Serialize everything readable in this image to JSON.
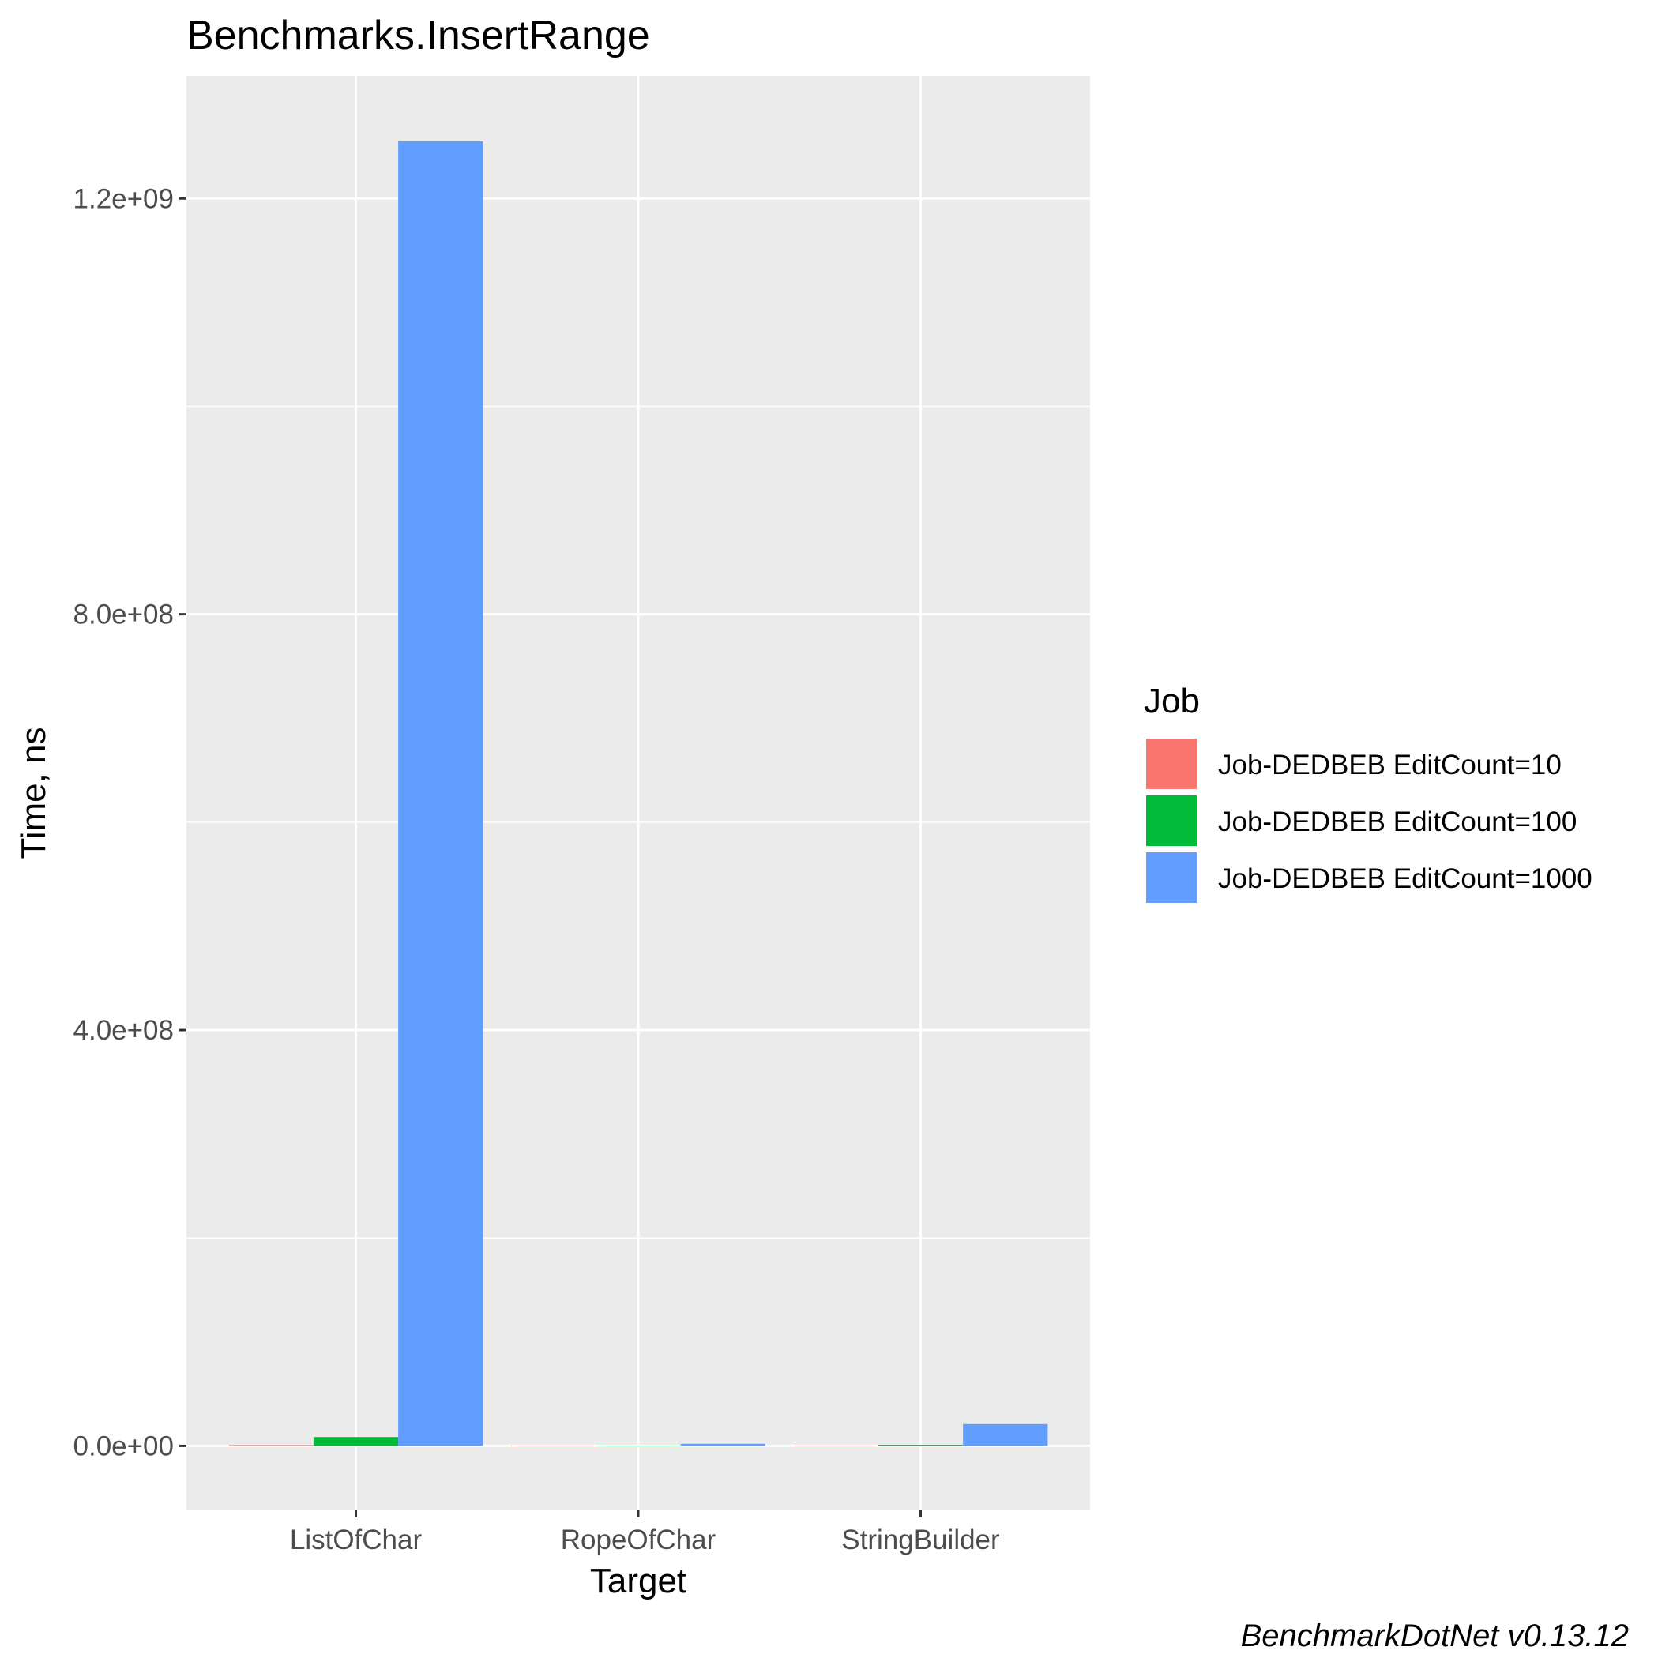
{
  "chart_data": {
    "type": "bar",
    "title": "Benchmarks.InsertRange",
    "xlabel": "Target",
    "ylabel": "Time, ns",
    "categories": [
      "ListOfChar",
      "RopeOfChar",
      "StringBuilder"
    ],
    "series": [
      {
        "name": "Job-DEDBEB EditCount=10",
        "color": "#F8766D",
        "values": [
          800000,
          20000,
          100000
        ]
      },
      {
        "name": "Job-DEDBEB EditCount=100",
        "color": "#00BA38",
        "values": [
          8500000,
          200000,
          1000000
        ]
      },
      {
        "name": "Job-DEDBEB EditCount=1000",
        "color": "#619CFF",
        "values": [
          1255000000,
          2000000,
          21000000
        ]
      }
    ],
    "ylim": [
      -62000000,
      1318000000
    ],
    "yticks": [
      0,
      400000000,
      800000000,
      1200000000
    ],
    "ytick_labels": [
      "0.0e+00",
      "4.0e+08",
      "8.0e+08",
      "1.2e+09"
    ],
    "legend_title": "Job",
    "legend_position": "right",
    "grid": true,
    "caption": "BenchmarkDotNet v0.13.12"
  }
}
